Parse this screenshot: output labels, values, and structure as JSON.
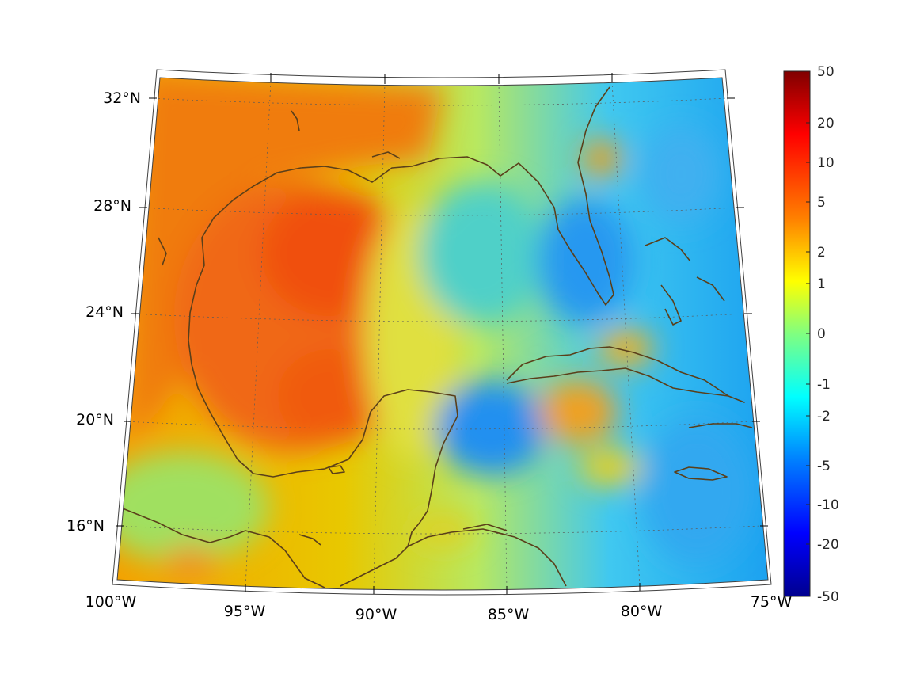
{
  "map": {
    "lon_labels": [
      "100°W",
      "95°W",
      "90°W",
      "85°W",
      "80°W",
      "75°W"
    ],
    "lat_labels": [
      "32°N",
      "28°N",
      "24°N",
      "20°N",
      "16°N"
    ],
    "coast_color": "#5a3f1a",
    "grid_style": "dotted"
  },
  "colorbar": {
    "tick_labels": [
      "50",
      "20",
      "10",
      "5",
      "2",
      "1",
      "0",
      "-1",
      "-2",
      "-5",
      "-10",
      "-20",
      "-50"
    ],
    "colormap": "jet",
    "color_top": "#800000",
    "color_bottom": "#00008f"
  }
}
